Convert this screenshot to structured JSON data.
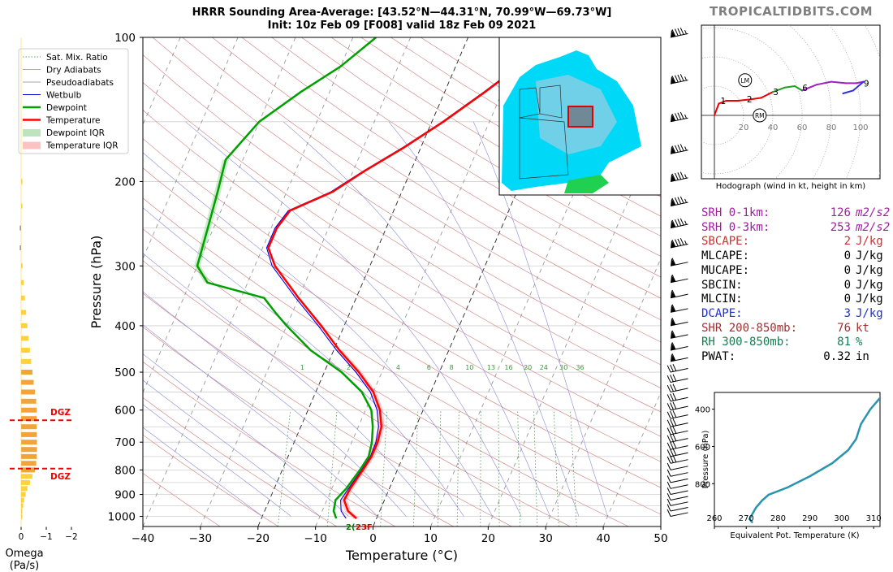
{
  "brand": "TROPICALTIDBITS.COM",
  "title": {
    "line1": "HRRR Sounding Area-Average: [43.52°N—44.31°N, 70.99°W—69.73°W]",
    "line2": "Init: 10z Feb 09 [F008] valid 18z Feb 09 2021"
  },
  "colors": {
    "temperature": "#ff0000",
    "dewpoint": "#00a000",
    "wetbulb": "#0000d0",
    "dry_adiabat": "#d07a7a",
    "pseudoadiabat": "#8a8ad8",
    "mixing_ratio": "#3a8a3a",
    "brand": "#7f7f7f"
  },
  "chart_data": [
    {
      "type": "line",
      "name": "skew-t",
      "xlabel": "Temperature (°C)",
      "ylabel": "Pressure (hPa)",
      "xlim": [
        -40,
        50
      ],
      "ylim": [
        1050,
        100
      ],
      "y_scale": "log",
      "x_ticks": [
        -40,
        -30,
        -20,
        -10,
        0,
        10,
        20,
        30,
        40,
        50
      ],
      "y_ticks": [
        100,
        200,
        300,
        400,
        500,
        600,
        700,
        800,
        900,
        1000
      ],
      "legend_position": "left",
      "legend": [
        "Sat. Mix. Ratio",
        "Dry Adiabats",
        "Pseudoadiabats",
        "Wetbulb",
        "Dewpoint",
        "Temperature",
        "Dewpoint IQR",
        "Temperature IQR"
      ],
      "mixing_ratio_labels": [
        "1",
        "2",
        "4",
        "6",
        "8",
        "10",
        "13",
        "16",
        "20",
        "24",
        "30",
        "36"
      ],
      "sfc_label": "2(23F",
      "temperature": [
        [
          1010,
          -3.5
        ],
        [
          975,
          -5.5
        ],
        [
          925,
          -7
        ],
        [
          875,
          -6.8
        ],
        [
          800,
          -6
        ],
        [
          750,
          -5.5
        ],
        [
          700,
          -5.5
        ],
        [
          650,
          -6
        ],
        [
          600,
          -7.5
        ],
        [
          550,
          -10
        ],
        [
          500,
          -14
        ],
        [
          450,
          -19
        ],
        [
          400,
          -24
        ],
        [
          350,
          -30
        ],
        [
          300,
          -36.5
        ],
        [
          275,
          -39
        ],
        [
          250,
          -39
        ],
        [
          230,
          -38
        ],
        [
          210,
          -32
        ],
        [
          190,
          -28
        ],
        [
          170,
          -23
        ],
        [
          150,
          -18
        ],
        [
          130,
          -13
        ],
        [
          115,
          -9
        ],
        [
          100,
          -5
        ]
      ],
      "dewpoint": [
        [
          1010,
          -7
        ],
        [
          975,
          -8
        ],
        [
          925,
          -8.5
        ],
        [
          875,
          -7.5
        ],
        [
          800,
          -6.5
        ],
        [
          750,
          -6
        ],
        [
          700,
          -6.5
        ],
        [
          650,
          -7.5
        ],
        [
          600,
          -9
        ],
        [
          550,
          -12
        ],
        [
          500,
          -17
        ],
        [
          450,
          -24
        ],
        [
          400,
          -30
        ],
        [
          375,
          -33
        ],
        [
          350,
          -36
        ],
        [
          325,
          -47
        ],
        [
          300,
          -50
        ],
        [
          250,
          -51
        ],
        [
          210,
          -52
        ],
        [
          180,
          -53
        ],
        [
          150,
          -50
        ],
        [
          130,
          -45
        ],
        [
          115,
          -40
        ],
        [
          100,
          -36
        ]
      ],
      "wetbulb": [
        [
          1010,
          -5.3
        ],
        [
          975,
          -6.7
        ],
        [
          925,
          -7.6
        ],
        [
          875,
          -7.1
        ],
        [
          800,
          -6.2
        ],
        [
          750,
          -5.7
        ],
        [
          700,
          -5.8
        ],
        [
          650,
          -6.5
        ],
        [
          600,
          -8
        ],
        [
          550,
          -10.5
        ],
        [
          500,
          -14.5
        ],
        [
          450,
          -19.5
        ],
        [
          400,
          -24.5
        ],
        [
          350,
          -30.5
        ],
        [
          300,
          -37
        ],
        [
          275,
          -39.3
        ],
        [
          250,
          -39.3
        ],
        [
          230,
          -38.3
        ],
        [
          210,
          -32.3
        ],
        [
          190,
          -28.2
        ],
        [
          170,
          -23.2
        ],
        [
          150,
          -18.2
        ],
        [
          130,
          -13.2
        ],
        [
          115,
          -9.2
        ],
        [
          100,
          -5.2
        ]
      ]
    },
    {
      "type": "bar",
      "name": "omega",
      "xlabel": "Omega (Pa/s)",
      "x_ticks": [
        "0",
        "−1",
        "−2"
      ],
      "xlim": [
        0.3,
        -2
      ],
      "dgz_label": "DGZ",
      "dgz_pressures": [
        630,
        795
      ],
      "levels": [
        1000,
        975,
        950,
        925,
        900,
        875,
        850,
        825,
        800,
        775,
        750,
        725,
        700,
        675,
        650,
        625,
        600,
        575,
        550,
        525,
        500,
        475,
        450,
        425,
        400,
        375,
        350,
        325,
        300,
        275,
        250,
        225,
        200
      ],
      "values": [
        -0.02,
        -0.04,
        -0.08,
        -0.12,
        -0.18,
        -0.25,
        -0.35,
        -0.45,
        -0.55,
        -0.6,
        -0.62,
        -0.63,
        -0.63,
        -0.62,
        -0.62,
        -0.62,
        -0.62,
        -0.6,
        -0.55,
        -0.5,
        -0.45,
        -0.4,
        -0.35,
        -0.3,
        -0.25,
        -0.2,
        -0.15,
        -0.1,
        -0.06,
        0.05,
        0.05,
        0,
        -0.02
      ]
    },
    {
      "type": "line",
      "name": "hodograph",
      "xlabel": "Hodograph (wind in kt, height in km)",
      "ring_labels": [
        "20",
        "40",
        "60",
        "80",
        "100"
      ],
      "height_labels": [
        "1",
        "2",
        "3",
        "6",
        "9"
      ],
      "storm_motion_labels": [
        "LM",
        "RM"
      ],
      "points": [
        [
          0,
          0
        ],
        [
          3,
          8
        ],
        [
          8,
          10
        ],
        [
          16,
          10
        ],
        [
          25,
          11
        ],
        [
          32,
          12
        ],
        [
          40,
          16
        ],
        [
          48,
          19
        ],
        [
          55,
          20
        ],
        [
          60,
          17
        ],
        [
          70,
          21
        ],
        [
          80,
          23
        ],
        [
          90,
          22
        ],
        [
          97,
          22
        ],
        [
          102,
          23
        ],
        [
          95,
          17
        ],
        [
          88,
          15
        ]
      ],
      "labeled_points": [
        [
          6,
          10
        ],
        [
          24,
          11
        ],
        [
          42,
          16
        ],
        [
          62,
          19
        ],
        [
          104,
          22
        ]
      ],
      "LM": [
        21,
        24
      ],
      "RM": [
        31,
        0
      ]
    },
    {
      "type": "line",
      "name": "theta-e",
      "xlabel": "Equivalent Pot. Temperature (K)",
      "ylabel": "Pressure (hPa)",
      "x_ticks": [
        "260",
        "270",
        "280",
        "290",
        "300",
        "310"
      ],
      "y_ticks": [
        "400",
        "600",
        "800"
      ],
      "xlim": [
        260,
        312
      ],
      "ylim": [
        1030,
        310
      ],
      "points": [
        [
          272,
          1010
        ],
        [
          271,
          990
        ],
        [
          272,
          960
        ],
        [
          273,
          930
        ],
        [
          275,
          890
        ],
        [
          277,
          860
        ],
        [
          283,
          820
        ],
        [
          290,
          760
        ],
        [
          297,
          690
        ],
        [
          302,
          620
        ],
        [
          304.5,
          560
        ],
        [
          306,
          480
        ],
        [
          309,
          400
        ],
        [
          313,
          320
        ]
      ]
    }
  ],
  "stats": [
    {
      "label": "SRH 0-1km:",
      "value": "126",
      "unit": "m2/s2",
      "color": "#a020a0"
    },
    {
      "label": "SRH 0-3km:",
      "value": "253",
      "unit": "m2/s2",
      "color": "#a020a0"
    },
    {
      "label": "SBCAPE:",
      "value": "2",
      "unit": "J/kg",
      "color": "#d03030"
    },
    {
      "label": "MLCAPE:",
      "value": "0",
      "unit": "J/kg",
      "color": "#000000"
    },
    {
      "label": "MUCAPE:",
      "value": "0",
      "unit": "J/kg",
      "color": "#000000"
    },
    {
      "label": "SBCIN:",
      "value": "0",
      "unit": "J/kg",
      "color": "#000000"
    },
    {
      "label": "MLCIN:",
      "value": "0",
      "unit": "J/kg",
      "color": "#000000"
    },
    {
      "label": "DCAPE:",
      "value": "3",
      "unit": "J/kg",
      "color": "#2030d0"
    },
    {
      "label": "SHR 200-850mb:",
      "value": "76",
      "unit": "kt",
      "color": "#a03030"
    },
    {
      "label": "RH 300-850mb:",
      "value": "81",
      "unit": "%",
      "color": "#108050"
    },
    {
      "label": "PWAT:",
      "value": "0.32",
      "unit": "in",
      "color": "#000000"
    }
  ]
}
